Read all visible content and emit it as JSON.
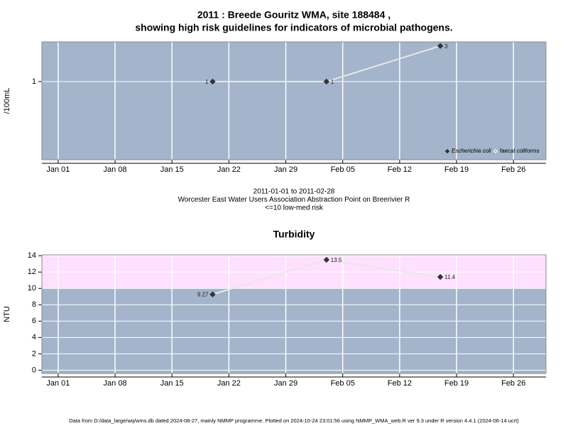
{
  "chart_data": [
    {
      "type": "line",
      "title": [
        "2011 : Breede Gouritz WMA, site 188484 ,",
        "showing high risk guidelines for indicators of microbial pathogens."
      ],
      "xlabel": [
        "2011-01-01 to 2011-02-28",
        "Worcester East Water Users Association Abstraction Point on Breerivier R",
        "<=10 low-med risk"
      ],
      "ylabel": "/100mL",
      "log_scale": true,
      "x": [
        "2011-01-20",
        "2011-02-03",
        "2011-02-17"
      ],
      "xlim": [
        "2010-12-30",
        "2011-03-02"
      ],
      "xticks": [
        {
          "value": "2011-01-01",
          "label": "Jan 01"
        },
        {
          "value": "2011-01-08",
          "label": "Jan 08"
        },
        {
          "value": "2011-01-15",
          "label": "Jan 15"
        },
        {
          "value": "2011-01-22",
          "label": "Jan 22"
        },
        {
          "value": "2011-01-29",
          "label": "Jan 29"
        },
        {
          "value": "2011-02-05",
          "label": "Feb 05"
        },
        {
          "value": "2011-02-12",
          "label": "Feb 12"
        },
        {
          "value": "2011-02-19",
          "label": "Feb 19"
        },
        {
          "value": "2011-02-26",
          "label": "Feb 26"
        }
      ],
      "ylim": [
        0.09,
        3.4
      ],
      "yticks": [
        1
      ],
      "grid": true,
      "background": "#a3b4cb",
      "legend": "lower right",
      "series": [
        {
          "name": "Escherichia coli",
          "color": "#333333",
          "line_color": "#e8e8e8",
          "marker": "filled",
          "values": [
            1,
            1,
            3
          ]
        },
        {
          "name": "faecal coliforms",
          "color": "#333333",
          "line_color": "#e8e8e8",
          "marker": "open",
          "values": [
            null,
            null,
            null
          ]
        }
      ]
    },
    {
      "type": "line",
      "title": "Turbidity",
      "ylabel": "NTU",
      "log_scale": false,
      "x": [
        "2011-01-20",
        "2011-02-03",
        "2011-02-17"
      ],
      "xlim": [
        "2010-12-30",
        "2011-03-02"
      ],
      "xticks": [
        {
          "value": "2011-01-01",
          "label": "Jan 01"
        },
        {
          "value": "2011-01-08",
          "label": "Jan 08"
        },
        {
          "value": "2011-01-15",
          "label": "Jan 15"
        },
        {
          "value": "2011-01-22",
          "label": "Jan 22"
        },
        {
          "value": "2011-01-29",
          "label": "Jan 29"
        },
        {
          "value": "2011-02-05",
          "label": "Feb 05"
        },
        {
          "value": "2011-02-12",
          "label": "Feb 12"
        },
        {
          "value": "2011-02-19",
          "label": "Feb 19"
        },
        {
          "value": "2011-02-26",
          "label": "Feb 26"
        }
      ],
      "ylim": [
        -0.4,
        14.1
      ],
      "yticks": [
        0,
        2,
        4,
        6,
        8,
        10,
        12,
        14
      ],
      "grid": true,
      "background": "#a3b4cb",
      "high_risk_from": 10,
      "high_risk_color": "#ffe0ff",
      "series": [
        {
          "name": "Turbidity",
          "color": "#333333",
          "line_color": "#e8e8e8",
          "marker": "filled",
          "values": [
            9.27,
            13.5,
            11.4
          ]
        }
      ]
    }
  ],
  "footer": "Data from D:/data_large/wq/wms.db dated 2024-08-27, mainly NMMP programme. Plotted on 2024-10-24 23:01:56 using NMMP_WMA_web.R ver 9.3 under R version 4.4.1 (2024-06-14 ucrt)"
}
